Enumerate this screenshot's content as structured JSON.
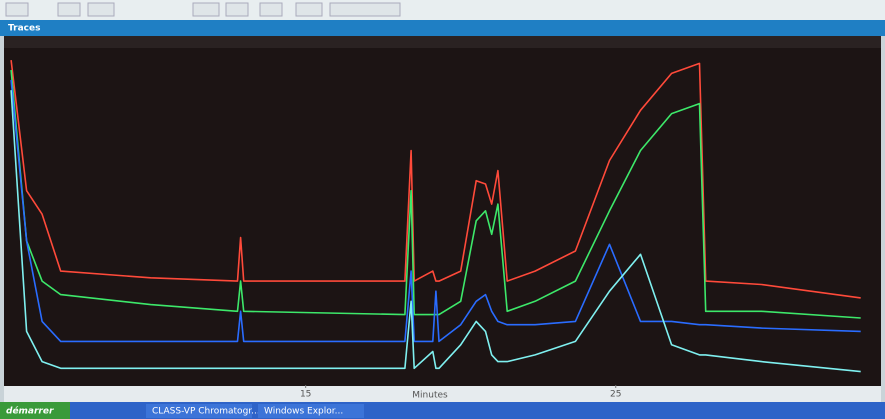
{
  "window": {
    "title": "Traces"
  },
  "taskbar": {
    "start": "démarrer",
    "items": [
      "CLASS-VP Chromatogr...",
      "Windows Explor..."
    ]
  },
  "chart_data": {
    "type": "line",
    "xlabel": "Minutes",
    "x": [
      5.5,
      6.0,
      6.5,
      7.1,
      10.0,
      12.8,
      12.9,
      13.0,
      18.2,
      18.4,
      18.5,
      19.1,
      19.2,
      19.3,
      20.0,
      20.5,
      20.8,
      21.0,
      21.2,
      21.5,
      22.4,
      23.7,
      24.8,
      25.8,
      26.8,
      27.7,
      27.9,
      29.7,
      32.9
    ],
    "xlim": [
      5.4,
      33.2
    ],
    "xticks": [
      15,
      25
    ],
    "ylim": [
      0,
      100
    ],
    "series": [
      {
        "color": "#ff4a3a",
        "values": [
          97,
          58,
          51,
          34,
          32,
          31,
          44,
          31,
          31,
          70,
          31,
          34,
          31,
          31,
          34,
          61,
          60,
          54,
          64,
          31,
          34,
          40,
          67,
          82,
          93,
          96,
          31,
          30,
          26
        ]
      },
      {
        "color": "#3de86a",
        "values": [
          94,
          43,
          31,
          27,
          24,
          22,
          31,
          22,
          21,
          58,
          21,
          21,
          21,
          21,
          25,
          49,
          52,
          45,
          54,
          22,
          25,
          31,
          52,
          70,
          81,
          84,
          22,
          22,
          20
        ]
      },
      {
        "color": "#2a6cff",
        "values": [
          91,
          43,
          19,
          13,
          13,
          13,
          22,
          13,
          13,
          34,
          13,
          13,
          28,
          13,
          18,
          25,
          27,
          22,
          19,
          18,
          18,
          19,
          42,
          19,
          19,
          18,
          18,
          17,
          16
        ]
      },
      {
        "color": "#7ff0f0",
        "values": [
          88,
          16,
          7,
          5,
          5,
          5,
          5,
          5,
          5,
          25,
          5,
          10,
          5,
          5,
          12,
          19,
          16,
          9,
          7,
          7,
          9,
          13,
          28,
          39,
          12,
          9,
          9,
          7,
          4
        ]
      }
    ]
  }
}
